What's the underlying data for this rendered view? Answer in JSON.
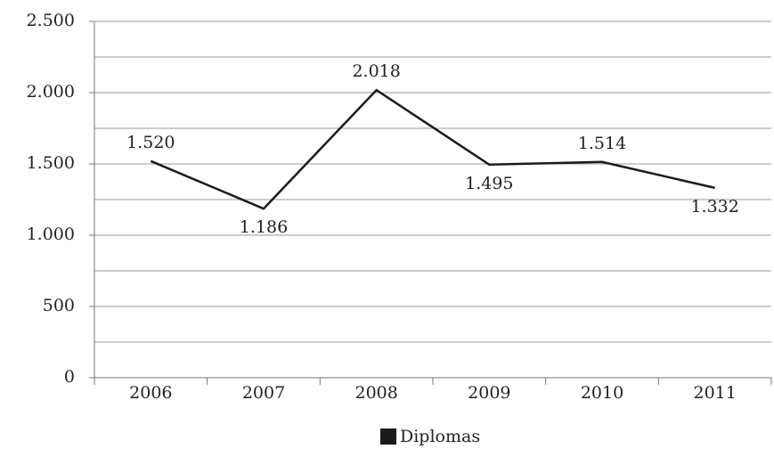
{
  "chart_data": {
    "type": "line",
    "categories": [
      "2006",
      "2007",
      "2008",
      "2009",
      "2010",
      "2011"
    ],
    "series": [
      {
        "name": "Diplomas",
        "color": "#1a1a1a",
        "values": [
          1520,
          1186,
          2018,
          1495,
          1514,
          1332
        ],
        "value_labels": [
          "1.520",
          "1.186",
          "2.018",
          "1.495",
          "1.514",
          "1.332"
        ]
      }
    ],
    "ylim": [
      0,
      2500
    ],
    "yticks": [
      0,
      500,
      {
        "value": 1000,
        "label": "1.000"
      },
      {
        "value": 1500,
        "label": "1.500"
      },
      {
        "value": 2000,
        "label": "2.000"
      },
      {
        "value": 2500,
        "label": "2.500"
      }
    ],
    "minor_yticks": [
      250,
      750,
      1250,
      1750,
      2250
    ],
    "grid": true,
    "legend": "bottom"
  }
}
